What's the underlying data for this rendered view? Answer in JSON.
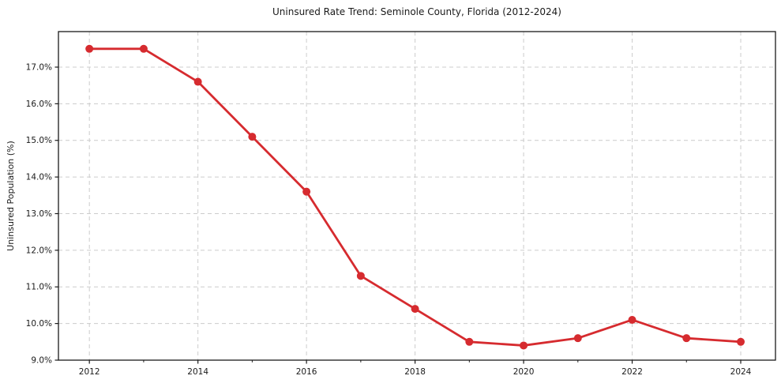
{
  "chart_data": {
    "type": "line",
    "title": "Uninsured Rate Trend: Seminole County, Florida (2012-2024)",
    "xlabel": "",
    "ylabel": "Uninsured Population (%)",
    "x": [
      2012,
      2013,
      2014,
      2015,
      2016,
      2017,
      2018,
      2019,
      2020,
      2021,
      2022,
      2023,
      2024
    ],
    "series": [
      {
        "name": "Uninsured Population (%)",
        "values": [
          17.5,
          17.5,
          16.6,
          15.1,
          13.6,
          11.3,
          10.4,
          9.5,
          9.4,
          9.6,
          10.1,
          9.6,
          9.5
        ]
      }
    ],
    "xlim": [
      2011.43,
      2024.64
    ],
    "ylim": [
      9.0,
      17.97
    ],
    "xticks": {
      "values": [
        2012,
        2014,
        2016,
        2018,
        2020,
        2022,
        2024
      ],
      "labels": [
        "2012",
        "2014",
        "2016",
        "2018",
        "2020",
        "2022",
        "2024"
      ]
    },
    "minor_xticks": [
      2013,
      2015,
      2017,
      2019,
      2021,
      2023
    ],
    "yticks": {
      "values": [
        9,
        10,
        11,
        12,
        13,
        14,
        15,
        16,
        17
      ],
      "labels": [
        "9.0%",
        "10.0%",
        "11.0%",
        "12.0%",
        "13.0%",
        "14.0%",
        "15.0%",
        "16.0%",
        "17.0%"
      ]
    },
    "grid": true,
    "legend": false,
    "styles": {
      "line_color": "#d62b2f",
      "marker": "circle",
      "marker_radius": 5,
      "line_width": 2.8,
      "grid_color": "#cccccc",
      "axis_color": "#1a1a1a",
      "text_color": "#1a1a1a",
      "background": "#ffffff"
    }
  }
}
